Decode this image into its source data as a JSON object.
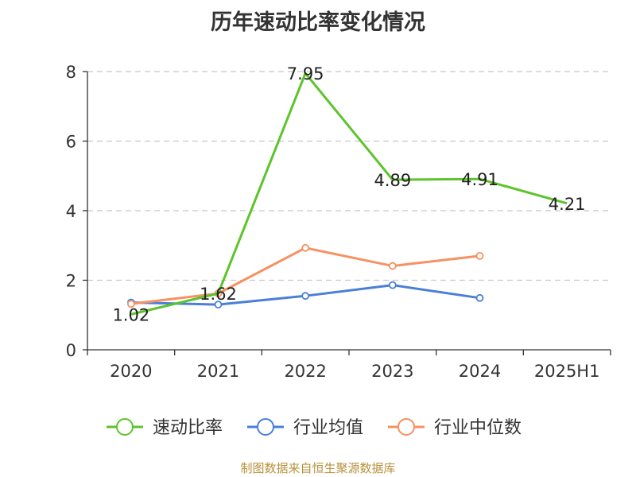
{
  "chart_data": {
    "type": "line",
    "title": "历年速动比率变化情况",
    "categories": [
      "2020",
      "2021",
      "2022",
      "2023",
      "2024",
      "2025H1"
    ],
    "ylim": [
      0,
      8
    ],
    "yticks": [
      0,
      2,
      4,
      6,
      8
    ],
    "grid": true,
    "legend_position": "bottom",
    "series": [
      {
        "name": "速动比率",
        "color": "#5cc42b",
        "values": [
          1.02,
          1.62,
          7.95,
          4.89,
          4.91,
          4.21
        ],
        "labels": [
          "1.02",
          "1.62",
          "7.95",
          "4.89",
          "4.91",
          "4.21"
        ],
        "show_markers": false
      },
      {
        "name": "行业均值",
        "color": "#4a7fd9",
        "values": [
          1.36,
          1.3,
          1.55,
          1.86,
          1.49,
          null
        ],
        "show_markers": true
      },
      {
        "name": "行业中位数",
        "color": "#f59162",
        "values": [
          1.32,
          1.62,
          2.93,
          2.41,
          2.7,
          null
        ],
        "show_markers": true
      }
    ]
  },
  "source_note": "制图数据来自恒生聚源数据库"
}
